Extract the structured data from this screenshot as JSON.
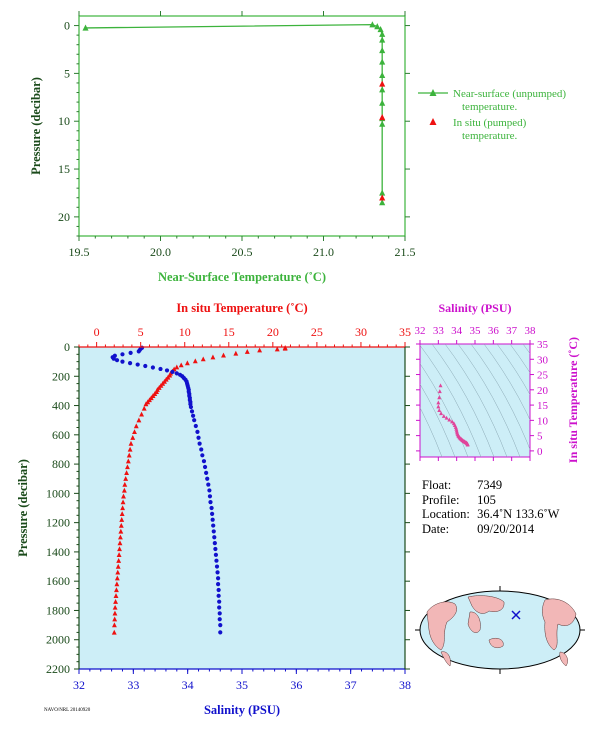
{
  "colors": {
    "surface_green": "#3cb33c",
    "axis_green": "#2e7d32",
    "label_green": "#3cb33c",
    "insitu_red": "#ee1111",
    "salinity_blue": "#1111cc",
    "salinity_magenta": "#cc11cc",
    "ts_points": "#e0449a",
    "panel_bg": "#cdeef7",
    "axis_dark": "#1a4a1a"
  },
  "top_chart": {
    "xlabel": "Near-Surface Temperature (˚C)",
    "ylabel": "Pressure (decibar)",
    "xticks": [
      "19.5",
      "20.0",
      "20.5",
      "21.0",
      "21.5"
    ],
    "yticks": [
      "0",
      "5",
      "10",
      "15",
      "20"
    ],
    "legend": [
      {
        "label": "Near-surface (unpumped)",
        "label2": "temperature.",
        "marker": "green-triangle"
      },
      {
        "label": "In situ (pumped)",
        "label2": "temperature.",
        "marker": "red-triangle"
      }
    ]
  },
  "bottom_chart": {
    "top_xlabel": "In situ Temperature (˚C)",
    "bottom_xlabel": "Salinity (PSU)",
    "ylabel": "Pressure (decibar)",
    "temp_ticks": [
      "0",
      "5",
      "10",
      "15",
      "20",
      "25",
      "30",
      "35"
    ],
    "sal_ticks": [
      "32",
      "33",
      "34",
      "35",
      "36",
      "37",
      "38"
    ],
    "p_ticks": [
      "0",
      "200",
      "400",
      "600",
      "800",
      "1000",
      "1200",
      "1400",
      "1600",
      "1800",
      "2000",
      "2200"
    ]
  },
  "ts_chart": {
    "xlabel": "Salinity (PSU)",
    "ylabel": "In situ Temperature (˚C)",
    "xticks": [
      "32",
      "33",
      "34",
      "35",
      "36",
      "37",
      "38"
    ],
    "yticks": [
      "0",
      "5",
      "10",
      "15",
      "20",
      "25",
      "30",
      "35"
    ]
  },
  "info": {
    "float_label": "Float:",
    "float_value": "7349",
    "profile_label": "Profile:",
    "profile_value": "105",
    "location_label": "Location:",
    "location_value": "36.4˚N  133.6˚W",
    "date_label": "Date:",
    "date_value": "09/20/2014"
  },
  "footer": "NAVO/NRL 20140920",
  "chart_data": [
    {
      "type": "scatter",
      "title": "",
      "xlabel": "Near-Surface Temperature (˚C)",
      "ylabel": "Pressure (decibar)",
      "xlim": [
        19.5,
        21.5
      ],
      "ylim": [
        22,
        -1
      ],
      "series": [
        {
          "name": "Near-surface (unpumped) temperature.",
          "points": [
            [
              19.54,
              0.25
            ],
            [
              21.3,
              -0.1
            ],
            [
              21.33,
              0.1
            ],
            [
              21.35,
              0.4
            ],
            [
              21.36,
              0.9
            ],
            [
              21.36,
              1.5
            ],
            [
              21.36,
              2.6
            ],
            [
              21.36,
              3.8
            ],
            [
              21.36,
              5.2
            ],
            [
              21.36,
              6.7
            ],
            [
              21.36,
              8.1
            ],
            [
              21.36,
              9.7
            ],
            [
              21.36,
              10.3
            ],
            [
              21.36,
              17.5
            ],
            [
              21.36,
              18.5
            ]
          ]
        },
        {
          "name": "In situ (pumped) temperature.",
          "points": [
            [
              21.36,
              6.1
            ],
            [
              21.36,
              9.6
            ],
            [
              21.36,
              18.0
            ]
          ]
        }
      ]
    },
    {
      "type": "scatter",
      "title": "",
      "ylabel": "Pressure (decibar)",
      "ylim": [
        2200,
        0
      ],
      "series": [
        {
          "name": "In situ Temperature (˚C)",
          "xlim": [
            -2,
            35
          ],
          "points": [
            [
              21.4,
              5
            ],
            [
              21.4,
              10
            ],
            [
              20.5,
              15
            ],
            [
              18.5,
              22
            ],
            [
              17.1,
              32
            ],
            [
              15.8,
              44
            ],
            [
              14.4,
              57
            ],
            [
              13.2,
              70
            ],
            [
              12.1,
              83
            ],
            [
              11.2,
              96
            ],
            [
              10.3,
              110
            ],
            [
              9.6,
              124
            ],
            [
              9.1,
              138
            ],
            [
              8.8,
              152
            ],
            [
              8.6,
              166
            ],
            [
              8.4,
              180
            ],
            [
              8.3,
              194
            ],
            [
              8.1,
              208
            ],
            [
              7.9,
              222
            ],
            [
              7.7,
              236
            ],
            [
              7.5,
              250
            ],
            [
              7.3,
              264
            ],
            [
              7.1,
              278
            ],
            [
              6.9,
              292
            ],
            [
              6.8,
              306
            ],
            [
              6.6,
              320
            ],
            [
              6.4,
              334
            ],
            [
              6.2,
              348
            ],
            [
              6.0,
              362
            ],
            [
              5.8,
              376
            ],
            [
              5.6,
              390
            ],
            [
              5.4,
              420
            ],
            [
              5.1,
              460
            ],
            [
              4.8,
              500
            ],
            [
              4.5,
              540
            ],
            [
              4.3,
              580
            ],
            [
              4.1,
              620
            ],
            [
              3.9,
              660
            ],
            [
              3.8,
              700
            ],
            [
              3.7,
              740
            ],
            [
              3.6,
              780
            ],
            [
              3.5,
              820
            ],
            [
              3.4,
              860
            ],
            [
              3.3,
              900
            ],
            [
              3.2,
              940
            ],
            [
              3.15,
              980
            ],
            [
              3.05,
              1020
            ],
            [
              3.0,
              1060
            ],
            [
              2.95,
              1100
            ],
            [
              2.9,
              1140
            ],
            [
              2.85,
              1180
            ],
            [
              2.8,
              1220
            ],
            [
              2.75,
              1260
            ],
            [
              2.7,
              1300
            ],
            [
              2.65,
              1340
            ],
            [
              2.6,
              1380
            ],
            [
              2.55,
              1420
            ],
            [
              2.5,
              1460
            ],
            [
              2.45,
              1500
            ],
            [
              2.4,
              1540
            ],
            [
              2.35,
              1580
            ],
            [
              2.3,
              1620
            ],
            [
              2.25,
              1660
            ],
            [
              2.2,
              1700
            ],
            [
              2.15,
              1740
            ],
            [
              2.1,
              1780
            ],
            [
              2.08,
              1820
            ],
            [
              2.05,
              1860
            ],
            [
              2.02,
              1900
            ],
            [
              2.0,
              1950
            ]
          ]
        },
        {
          "name": "Salinity (PSU)",
          "xlim": [
            32,
            38
          ],
          "points": [
            [
              33.16,
              5
            ],
            [
              33.14,
              10
            ],
            [
              33.12,
              20
            ],
            [
              33.1,
              30
            ],
            [
              32.95,
              40
            ],
            [
              32.8,
              50
            ],
            [
              32.66,
              60
            ],
            [
              32.62,
              70
            ],
            [
              32.64,
              80
            ],
            [
              32.7,
              90
            ],
            [
              32.8,
              100
            ],
            [
              32.94,
              110
            ],
            [
              33.08,
              120
            ],
            [
              33.22,
              130
            ],
            [
              33.36,
              140
            ],
            [
              33.5,
              150
            ],
            [
              33.62,
              160
            ],
            [
              33.72,
              170
            ],
            [
              33.8,
              180
            ],
            [
              33.86,
              190
            ],
            [
              33.9,
              200
            ],
            [
              33.93,
              212
            ],
            [
              33.96,
              224
            ],
            [
              33.98,
              236
            ],
            [
              33.99,
              250
            ],
            [
              34.0,
              264
            ],
            [
              34.01,
              278
            ],
            [
              34.02,
              292
            ],
            [
              34.02,
              306
            ],
            [
              34.03,
              320
            ],
            [
              34.03,
              334
            ],
            [
              34.04,
              348
            ],
            [
              34.04,
              362
            ],
            [
              34.05,
              376
            ],
            [
              34.05,
              390
            ],
            [
              34.06,
              410
            ],
            [
              34.08,
              440
            ],
            [
              34.1,
              470
            ],
            [
              34.12,
              500
            ],
            [
              34.15,
              540
            ],
            [
              34.18,
              580
            ],
            [
              34.2,
              620
            ],
            [
              34.22,
              660
            ],
            [
              34.25,
              700
            ],
            [
              34.27,
              740
            ],
            [
              34.3,
              780
            ],
            [
              34.32,
              820
            ],
            [
              34.34,
              860
            ],
            [
              34.36,
              900
            ],
            [
              34.38,
              940
            ],
            [
              34.4,
              980
            ],
            [
              34.41,
              1020
            ],
            [
              34.42,
              1060
            ],
            [
              34.44,
              1100
            ],
            [
              34.45,
              1140
            ],
            [
              34.46,
              1180
            ],
            [
              34.47,
              1220
            ],
            [
              34.48,
              1260
            ],
            [
              34.49,
              1300
            ],
            [
              34.5,
              1340
            ],
            [
              34.51,
              1380
            ],
            [
              34.52,
              1420
            ],
            [
              34.53,
              1460
            ],
            [
              34.54,
              1500
            ],
            [
              34.55,
              1540
            ],
            [
              34.56,
              1580
            ],
            [
              34.56,
              1620
            ],
            [
              34.57,
              1660
            ],
            [
              34.57,
              1700
            ],
            [
              34.58,
              1740
            ],
            [
              34.58,
              1780
            ],
            [
              34.59,
              1820
            ],
            [
              34.59,
              1860
            ],
            [
              34.6,
              1900
            ],
            [
              34.6,
              1950
            ]
          ]
        }
      ]
    },
    {
      "type": "scatter",
      "title": "",
      "xlabel": "Salinity (PSU)",
      "ylabel": "In situ Temperature (˚C)",
      "xlim": [
        32,
        38
      ],
      "ylim": [
        -2,
        35
      ],
      "series": [
        {
          "name": "",
          "points": [
            [
              33.12,
              21.4
            ],
            [
              33.08,
              19.5
            ],
            [
              33.05,
              17.5
            ],
            [
              33.0,
              15.8
            ],
            [
              33.0,
              14.5
            ],
            [
              33.05,
              13.3
            ],
            [
              33.15,
              12.3
            ],
            [
              33.3,
              11.4
            ],
            [
              33.45,
              10.8
            ],
            [
              33.6,
              10.2
            ],
            [
              33.75,
              9.6
            ],
            [
              33.85,
              9.0
            ],
            [
              33.9,
              8.4
            ],
            [
              33.95,
              7.8
            ],
            [
              33.98,
              7.2
            ],
            [
              34.0,
              6.6
            ],
            [
              34.02,
              6.0
            ],
            [
              34.05,
              5.5
            ],
            [
              34.08,
              5.0
            ],
            [
              34.12,
              4.7
            ],
            [
              34.16,
              4.4
            ],
            [
              34.2,
              4.1
            ],
            [
              34.24,
              3.9
            ],
            [
              34.28,
              3.7
            ],
            [
              34.32,
              3.5
            ],
            [
              34.36,
              3.3
            ],
            [
              34.4,
              3.15
            ],
            [
              34.44,
              3.0
            ],
            [
              34.48,
              2.85
            ],
            [
              34.52,
              2.7
            ],
            [
              34.55,
              2.55
            ],
            [
              34.58,
              2.4
            ],
            [
              34.6,
              2.2
            ],
            [
              34.6,
              2.0
            ]
          ]
        }
      ]
    }
  ]
}
